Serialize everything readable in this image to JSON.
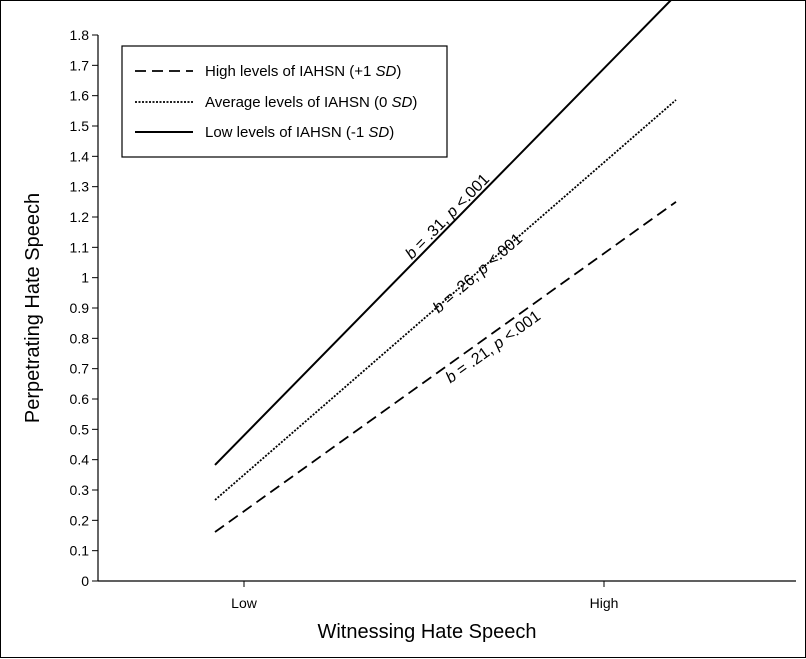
{
  "chart_data": {
    "type": "line",
    "xlabel": "Witnessing Hate Speech",
    "ylabel": "Perpetrating Hate Speech",
    "x": [
      "Low",
      "High"
    ],
    "ylim": [
      0,
      1.8
    ],
    "yticks": [
      "0",
      "0.1",
      "0.2",
      "0.3",
      "0.4",
      "0.5",
      "0.6",
      "0.7",
      "0.8",
      "0.9",
      "1",
      "1.1",
      "1.2",
      "1.3",
      "1.4",
      "1.5",
      "1.6",
      "1.7",
      "1.8"
    ],
    "grid": false,
    "legend_position": "top-left",
    "series": [
      {
        "name": "High levels of IAHSN (+1 SD)",
        "legend_parts": [
          "High levels of IAHSN (+1 ",
          "SD",
          ")"
        ],
        "style": "dashed",
        "values": [
          0.23,
          1.08
        ],
        "annotation": {
          "b_label": "b",
          "text": " = .21, ",
          "p_label": "p",
          "text2": " <.001"
        }
      },
      {
        "name": "Average levels of IAHSN (0 SD)",
        "legend_parts": [
          "Average levels of IAHSN (0 ",
          "SD",
          ")"
        ],
        "style": "dotted",
        "values": [
          0.35,
          1.38
        ],
        "annotation": {
          "b_label": "b",
          "text": " = .26, ",
          "p_label": "p",
          "text2": " <.001"
        }
      },
      {
        "name": "Low levels of IAHSN (-1 SD)",
        "legend_parts": [
          "Low levels of IAHSN (-1 ",
          "SD",
          ")"
        ],
        "style": "solid",
        "values": [
          0.48,
          1.69
        ],
        "annotation": {
          "b_label": "b",
          "text": " = .31, ",
          "p_label": "p",
          "text2": " <.001"
        }
      }
    ]
  }
}
